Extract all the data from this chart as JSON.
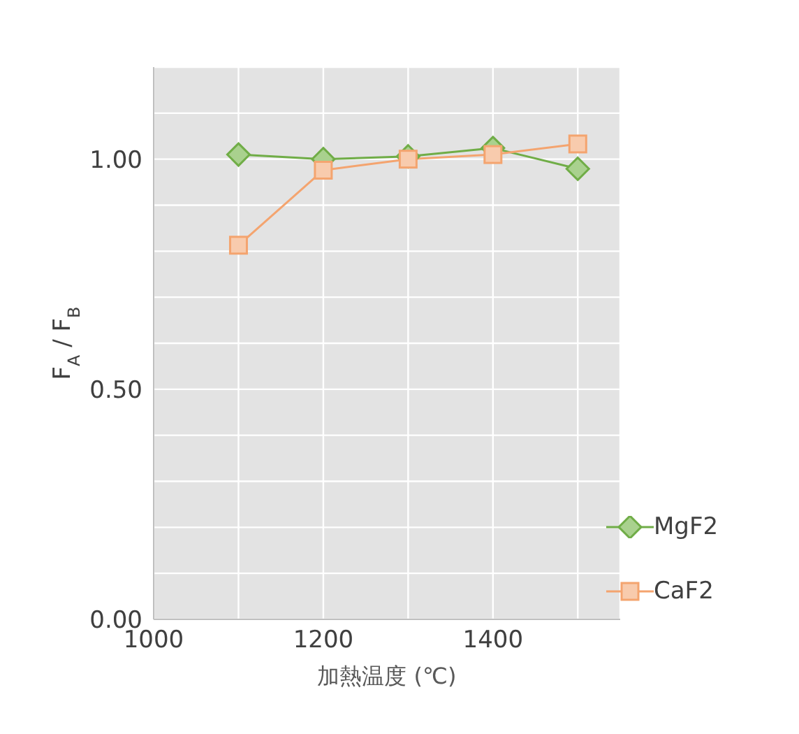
{
  "chart_data": {
    "type": "line",
    "xlabel": "加熱温度 (℃)",
    "ylabel": "F$_{A}$ / F$_{B}$",
    "x": [
      1100,
      1200,
      1300,
      1400,
      1500
    ],
    "series": [
      {
        "name": "MgF2",
        "color": "#70ad47",
        "marker": "diamond",
        "values": [
          1.01,
          1.0,
          1.006,
          1.024,
          0.979
        ]
      },
      {
        "name": "CaF2",
        "color": "#f4a46f",
        "marker": "square",
        "values": [
          0.813,
          0.976,
          1.0,
          1.01,
          1.033
        ]
      }
    ],
    "xlim": [
      1000,
      1550
    ],
    "xticks": [
      1000,
      {
        "value": 1100,
        "label": null
      },
      1200,
      {
        "value": 1300,
        "label": null
      },
      1400,
      {
        "value": 1500,
        "label": null
      }
    ],
    "ylim": [
      0,
      1.2
    ],
    "yticks": [
      {
        "value": 0,
        "label": "0.00"
      },
      {
        "value": 0.1,
        "label": null
      },
      {
        "value": 0.2,
        "label": null
      },
      {
        "value": 0.3,
        "label": null
      },
      {
        "value": 0.4,
        "label": null
      },
      {
        "value": 0.5,
        "label": "0.50"
      },
      {
        "value": 0.6,
        "label": null
      },
      {
        "value": 0.7,
        "label": null
      },
      {
        "value": 0.8,
        "label": null
      },
      {
        "value": 0.9,
        "label": null
      },
      {
        "value": 1.0,
        "label": "1.00"
      },
      {
        "value": 1.1,
        "label": null
      },
      {
        "value": 1.2,
        "label": null
      }
    ],
    "grid": true,
    "legend": "bottom right"
  }
}
